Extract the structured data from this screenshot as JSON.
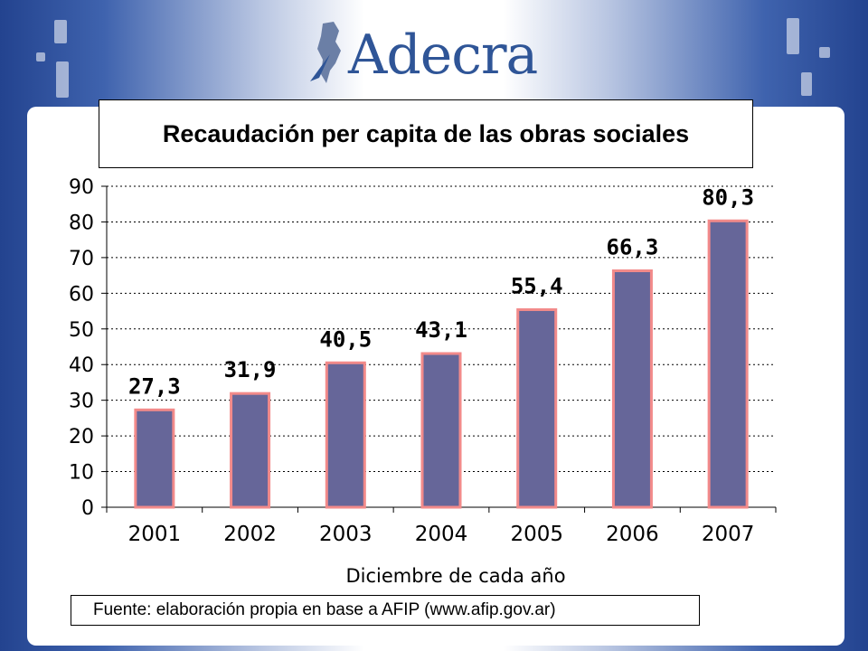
{
  "logo": {
    "text": "Adecra"
  },
  "colors": {
    "bar_fill": "#666699",
    "bar_stroke": "#f28a8a",
    "title_blue": "#2f5597"
  },
  "chart_data": {
    "type": "bar",
    "title": "Recaudación per capita de las obras sociales",
    "xlabel": "Diciembre de cada año",
    "ylabel": "",
    "categories": [
      "2001",
      "2002",
      "2003",
      "2004",
      "2005",
      "2006",
      "2007"
    ],
    "values": [
      27.3,
      31.9,
      40.5,
      43.1,
      55.4,
      66.3,
      80.3
    ],
    "value_labels": [
      "27,3",
      "31,9",
      "40,5",
      "43,1",
      "55,4",
      "66,3",
      "80,3"
    ],
    "ylim": [
      0,
      90
    ],
    "yticks": [
      0,
      10,
      20,
      30,
      40,
      50,
      60,
      70,
      80,
      90
    ],
    "grid": true,
    "legend": "none"
  },
  "footer": {
    "source": "Fuente: elaboración propia en base a AFIP (www.afip.gov.ar)"
  }
}
